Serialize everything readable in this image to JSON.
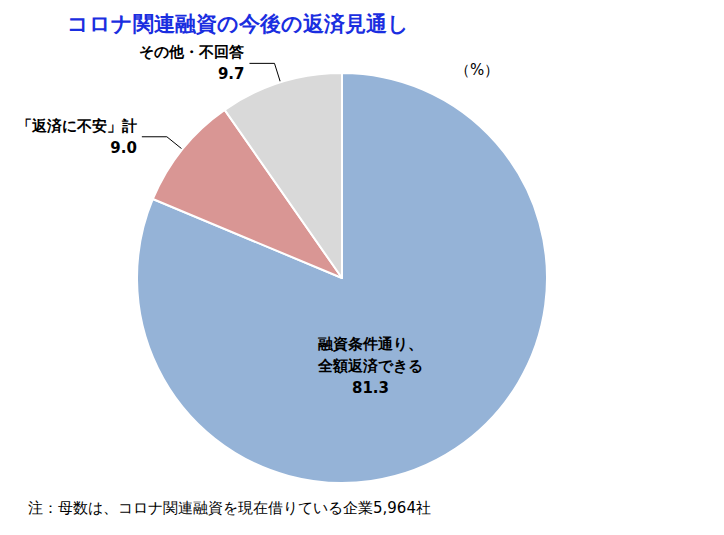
{
  "chart_data": {
    "type": "pie",
    "title": "コロナ関連融資の今後の返済見通し",
    "annotations": [
      "（%）",
      "注：母数は、コロナ関連融資を現在借りている企業5,964社"
    ],
    "categories": [
      "融資条件通り、\n全額返済できる",
      "「返済に不安」計",
      "その他・不回答"
    ],
    "values": [
      81.3,
      9.0,
      9.7
    ],
    "value_labels": [
      "81.3",
      "9.0",
      "9.7"
    ],
    "colors": [
      "#95b3d7",
      "#d99694",
      "#d9d9d9"
    ],
    "data_labels": true
  }
}
